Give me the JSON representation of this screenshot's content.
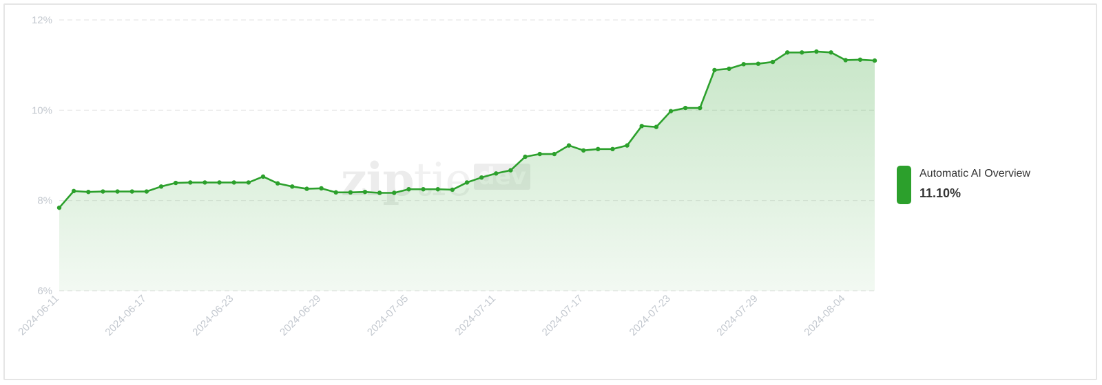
{
  "chart_data": {
    "type": "area",
    "title": "",
    "xlabel": "",
    "ylabel": "",
    "ylim": [
      6,
      12
    ],
    "yticks": [
      "6%",
      "8%",
      "10%",
      "12%"
    ],
    "xticks": [
      "2024-06-11",
      "2024-06-17",
      "2024-06-23",
      "2024-06-29",
      "2024-07-05",
      "2024-07-11",
      "2024-07-17",
      "2024-07-23",
      "2024-07-29",
      "2024-08-04"
    ],
    "x_start": "2024-06-11",
    "x_end": "2024-08-06",
    "grid": "horizontal dashed",
    "legend_position": "right",
    "series": [
      {
        "name": "Automatic AI Overview",
        "color": "#2ca02c",
        "latest_value": "11.10%",
        "values": [
          7.84,
          8.21,
          8.19,
          8.2,
          8.2,
          8.2,
          8.2,
          8.31,
          8.39,
          8.4,
          8.4,
          8.4,
          8.4,
          8.4,
          8.53,
          8.38,
          8.31,
          8.26,
          8.27,
          8.18,
          8.18,
          8.19,
          8.17,
          8.17,
          8.25,
          8.25,
          8.25,
          8.24,
          8.4,
          8.51,
          8.6,
          8.67,
          8.97,
          9.03,
          9.03,
          9.22,
          9.11,
          9.14,
          9.14,
          9.22,
          9.65,
          9.63,
          9.98,
          10.05,
          10.05,
          10.89,
          10.92,
          11.02,
          11.03,
          11.07,
          11.28,
          11.28,
          11.3,
          11.28,
          11.11,
          11.12,
          11.1
        ]
      }
    ]
  },
  "watermark": {
    "zip": "zip",
    "tie": "tie",
    "dev": "dev"
  }
}
